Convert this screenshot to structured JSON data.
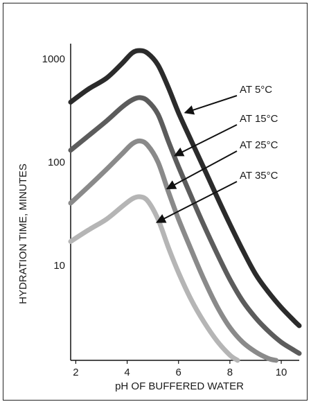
{
  "chart_data": {
    "type": "line",
    "title": "",
    "xlabel": "pH OF BUFFERED WATER",
    "ylabel": "HYDRATION TIME, MINUTES",
    "xlim": [
      1.8,
      10.7
    ],
    "ylim": [
      1.2,
      1400
    ],
    "y_scale": "log",
    "grid": false,
    "x_ticks": [
      {
        "value": 2,
        "label": "2"
      },
      {
        "value": 4,
        "label": "4"
      },
      {
        "value": 6,
        "label": "6"
      },
      {
        "value": 8,
        "label": "8"
      },
      {
        "value": 10,
        "label": "10"
      }
    ],
    "y_ticks": [
      {
        "value": 1000,
        "label": "1000"
      },
      {
        "value": 100,
        "label": "100"
      },
      {
        "value": 10,
        "label": "10"
      }
    ],
    "series": [
      {
        "name": "AT 5°C",
        "color": "#2b2b2b",
        "x": [
          1.8,
          2.5,
          3.2,
          3.8,
          4.2,
          4.5,
          4.8,
          5.2,
          5.6,
          6.0,
          6.5,
          7.0,
          7.5,
          8.0,
          8.5,
          9.0,
          9.5,
          10.0,
          10.5,
          10.7
        ],
        "y": [
          380,
          510,
          650,
          900,
          1140,
          1200,
          1130,
          870,
          530,
          300,
          160,
          86,
          46,
          25,
          14,
          8.2,
          5.5,
          3.9,
          2.9,
          2.6
        ]
      },
      {
        "name": "AT 15°C",
        "color": "#5c5c5c",
        "x": [
          1.8,
          2.5,
          3.2,
          3.8,
          4.2,
          4.5,
          4.8,
          5.2,
          5.6,
          6.0,
          6.5,
          7.0,
          7.5,
          8.0,
          8.5,
          9.0,
          9.5,
          10.0,
          10.5,
          10.7
        ],
        "y": [
          130,
          180,
          250,
          340,
          400,
          420,
          390,
          290,
          160,
          90,
          46,
          24,
          13,
          7.3,
          4.5,
          3.1,
          2.3,
          1.8,
          1.5,
          1.4
        ]
      },
      {
        "name": "AT 25°C",
        "color": "#8a8a8a",
        "x": [
          1.8,
          2.5,
          3.2,
          3.8,
          4.2,
          4.5,
          4.8,
          5.2,
          5.6,
          6.0,
          6.5,
          7.0,
          7.5,
          8.0,
          8.5,
          9.0,
          9.5,
          9.8
        ],
        "y": [
          40,
          58,
          85,
          120,
          150,
          160,
          145,
          100,
          52,
          28,
          14,
          7.2,
          4.0,
          2.5,
          1.8,
          1.45,
          1.25,
          1.2
        ]
      },
      {
        "name": "AT 35°C",
        "color": "#b5b5b5",
        "x": [
          1.8,
          2.5,
          3.2,
          3.8,
          4.2,
          4.5,
          4.8,
          5.2,
          5.6,
          6.0,
          6.5,
          7.0,
          7.5,
          8.0,
          8.3
        ],
        "y": [
          17,
          22,
          28,
          37,
          44,
          46,
          42,
          28,
          15,
          8.5,
          4.6,
          2.8,
          1.85,
          1.35,
          1.2
        ]
      }
    ],
    "annotations": [
      {
        "text": "AT 5°C",
        "series": "AT 5°C",
        "arrow_to": [
          6.25,
          300
        ]
      },
      {
        "text": "AT 15°C",
        "series": "AT 15°C",
        "arrow_to": [
          5.85,
          115
        ]
      },
      {
        "text": "AT 25°C",
        "series": "AT 25°C",
        "arrow_to": [
          5.55,
          55
        ]
      },
      {
        "text": "AT 35°C",
        "series": "AT 35°C",
        "arrow_to": [
          5.15,
          26
        ]
      }
    ]
  }
}
